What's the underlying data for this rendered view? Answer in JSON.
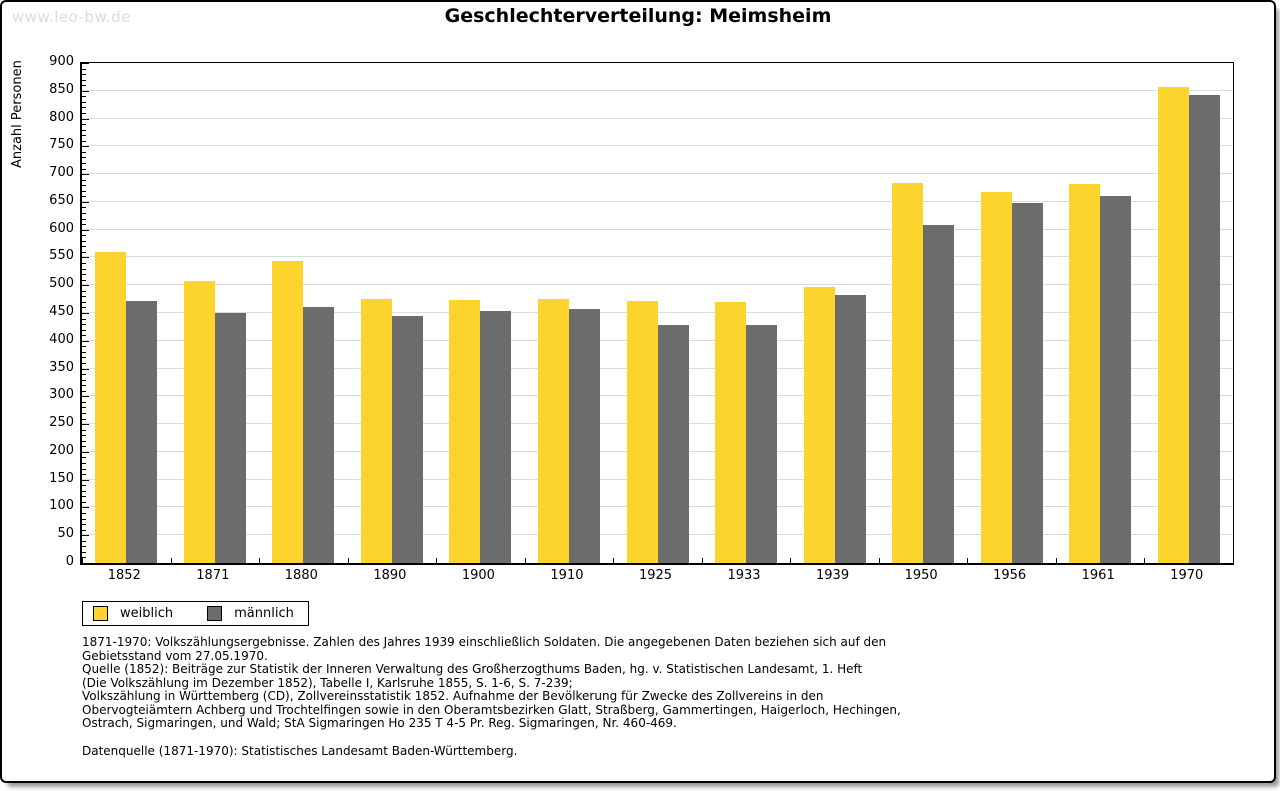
{
  "page": {
    "watermark": "www.leo-bw.de",
    "title": "Geschlechterverteilung: Meimsheim"
  },
  "chart_data": {
    "type": "bar",
    "title": "Geschlechterverteilung: Meimsheim",
    "xlabel": "",
    "ylabel": "Anzahl Personen",
    "ylim": [
      0,
      900
    ],
    "ytick_step": 50,
    "y_minor_step": 10,
    "grid": true,
    "legend_position": "bottom-left",
    "categories": [
      "1852",
      "1871",
      "1880",
      "1890",
      "1900",
      "1910",
      "1925",
      "1933",
      "1939",
      "1950",
      "1956",
      "1961",
      "1970"
    ],
    "series": [
      {
        "name": "weiblich",
        "color": "#fcd42d",
        "values": [
          560,
          507,
          543,
          475,
          473,
          476,
          471,
          469,
          496,
          684,
          667,
          682,
          857
        ]
      },
      {
        "name": "männlich",
        "color": "#6c6c6c",
        "values": [
          472,
          450,
          461,
          444,
          453,
          457,
          428,
          428,
          483,
          609,
          648,
          660,
          843
        ]
      }
    ]
  },
  "legend": {
    "items": [
      {
        "label": "weiblich",
        "color": "#fcd42d"
      },
      {
        "label": "männlich",
        "color": "#6c6c6c"
      }
    ]
  },
  "footnotes": {
    "lines": [
      "1871-1970: Volkszählungsergebnisse. Zahlen des Jahres 1939 einschließlich Soldaten. Die angegebenen Daten beziehen sich auf den",
      "Gebietsstand vom 27.05.1970.",
      "Quelle (1852): Beiträge zur Statistik der Inneren Verwaltung des Großherzogthums Baden, hg. v. Statistischen Landesamt, 1. Heft",
      "(Die Volkszählung im Dezember 1852), Tabelle I, Karlsruhe 1855, S. 1-6, S. 7-239;",
      "Volkszählung in Württemberg (CD), Zollvereinsstatistik 1852. Aufnahme der Bevölkerung für Zwecke des Zollvereins in den",
      "Obervogteiämtern Achberg und Trochtelfingen sowie in den Oberamtsbezirken Glatt, Straßberg, Gammertingen, Haigerloch, Hechingen,",
      "Ostrach, Sigmaringen, und Wald; StA Sigmaringen Ho 235 T 4-5 Pr. Reg. Sigmaringen, Nr. 460-469."
    ],
    "datasource": "Datenquelle (1871-1970): Statistisches Landesamt Baden-Württemberg."
  }
}
